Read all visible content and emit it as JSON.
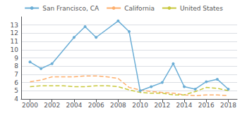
{
  "chart_data": {
    "type": "line",
    "series": [
      {
        "name": "San Francisco, CA",
        "color": "#6baed6",
        "marker": "circle",
        "line_style": "solid",
        "x": [
          2000,
          2001,
          2002,
          2004,
          2005,
          2006,
          2008,
          2009,
          2010,
          2011,
          2012,
          2013,
          2014,
          2015,
          2016,
          2017,
          2018
        ],
        "values": [
          8.5,
          7.7,
          8.3,
          11.5,
          12.8,
          11.5,
          13.5,
          12.2,
          5.0,
          5.5,
          6.0,
          8.3,
          5.5,
          5.2,
          6.1,
          6.4,
          5.2
        ]
      },
      {
        "name": "California",
        "color": "#fdae6b",
        "marker": "none",
        "line_style": "dashed",
        "x": [
          2000,
          2001,
          2002,
          2003,
          2004,
          2005,
          2006,
          2007,
          2008,
          2009,
          2010,
          2011,
          2012,
          2013,
          2014,
          2015,
          2016,
          2017,
          2018
        ],
        "values": [
          6.1,
          6.3,
          6.7,
          6.7,
          6.7,
          6.8,
          6.8,
          6.7,
          6.5,
          5.4,
          5.1,
          4.9,
          4.8,
          4.7,
          4.5,
          4.4,
          4.5,
          4.5,
          4.4
        ]
      },
      {
        "name": "United States",
        "color": "#c7c73a",
        "marker": "none",
        "line_style": "dashed",
        "x": [
          2000,
          2001,
          2002,
          2003,
          2004,
          2005,
          2006,
          2007,
          2008,
          2009,
          2010,
          2011,
          2012,
          2013,
          2014,
          2015,
          2016,
          2017,
          2018
        ],
        "values": [
          5.5,
          5.6,
          5.6,
          5.6,
          5.5,
          5.5,
          5.6,
          5.6,
          5.5,
          5.1,
          4.8,
          4.7,
          4.7,
          4.5,
          4.5,
          4.9,
          5.4,
          5.3,
          5.0
        ]
      }
    ],
    "xlim": [
      1999.2,
      2018.8
    ],
    "xticks": [
      2000,
      2002,
      2004,
      2006,
      2008,
      2010,
      2012,
      2014,
      2016,
      2018
    ],
    "ylim": [
      4,
      14
    ],
    "yticks": [
      4,
      5,
      6,
      7,
      8,
      9,
      10,
      11,
      12,
      13
    ],
    "grid": true,
    "legend": "top"
  }
}
